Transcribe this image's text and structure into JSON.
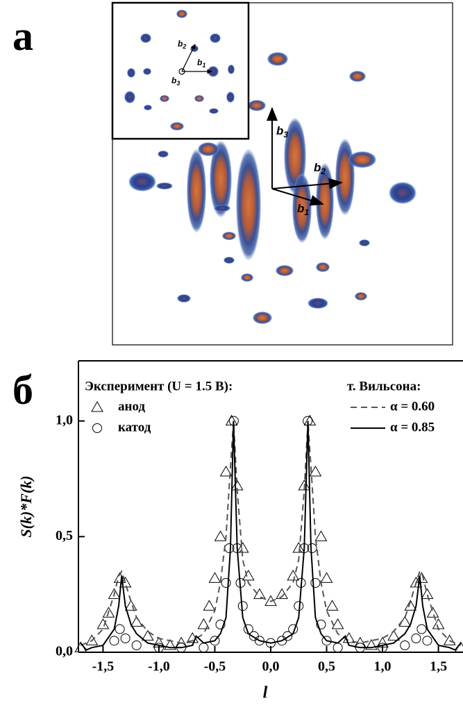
{
  "panel_a": {
    "label": "а",
    "vectors": [
      {
        "base": "b",
        "sub": "1"
      },
      {
        "base": "b",
        "sub": "2"
      },
      {
        "base": "b",
        "sub": "3"
      }
    ],
    "inset_vectors": [
      {
        "base": "b",
        "sub": "1"
      },
      {
        "base": "b",
        "sub": "2"
      },
      {
        "base": "b",
        "sub": "3"
      }
    ]
  },
  "chart_data": {
    "type": "line",
    "panel_label": "б",
    "x_label": "l",
    "y_label": "S(k)*F(k)",
    "legend_title_experiment": "Эксперимент (U = 1.5 В):",
    "legend_title_theory": "т. Вильсона:",
    "xlim": [
      -1.72,
      1.72
    ],
    "ylim": [
      0,
      1.26
    ],
    "xticks": [
      {
        "value": -1.5,
        "label": "-1,5"
      },
      {
        "value": -1.0,
        "label": "-1,0"
      },
      {
        "value": -0.5,
        "label": "-0,5"
      },
      {
        "value": 0,
        "label": "0,0"
      },
      {
        "value": 0.5,
        "label": "0,5"
      },
      {
        "value": 1.0,
        "label": "1,0"
      },
      {
        "value": 1.5,
        "label": "1,5"
      }
    ],
    "yticks": [
      {
        "value": 0,
        "label": "0,0"
      },
      {
        "value": 0.5,
        "label": "0,5"
      },
      {
        "value": 1.0,
        "label": "1,0"
      }
    ],
    "series": [
      {
        "name": "анод",
        "color": "#000000",
        "marker": "triangle",
        "x": [
          -1.7,
          -1.6,
          -1.5,
          -1.45,
          -1.4,
          -1.35,
          -1.3,
          -1.25,
          -1.2,
          -1.1,
          -1.0,
          -0.9,
          -0.8,
          -0.7,
          -0.6,
          -0.55,
          -0.5,
          -0.45,
          -0.4,
          -0.35,
          -0.3,
          -0.25,
          -0.2,
          -0.1,
          0,
          0.1,
          0.2,
          0.25,
          0.3,
          0.35,
          0.4,
          0.45,
          0.5,
          0.55,
          0.6,
          0.7,
          0.8,
          0.9,
          1.0,
          1.1,
          1.2,
          1.25,
          1.3,
          1.35,
          1.4,
          1.45,
          1.5,
          1.6,
          1.7
        ],
        "values": [
          0.02,
          0.05,
          0.12,
          0.17,
          0.25,
          0.32,
          0.3,
          0.2,
          0.13,
          0.07,
          0.04,
          0.03,
          0.04,
          0.06,
          0.12,
          0.2,
          0.32,
          0.5,
          0.78,
          1.0,
          0.72,
          0.45,
          0.33,
          0.25,
          0.22,
          0.25,
          0.33,
          0.45,
          0.72,
          1.0,
          0.78,
          0.5,
          0.32,
          0.2,
          0.12,
          0.06,
          0.04,
          0.03,
          0.04,
          0.07,
          0.13,
          0.2,
          0.3,
          0.32,
          0.25,
          0.17,
          0.12,
          0.05,
          0.02
        ]
      },
      {
        "name": "катод",
        "color": "#000000",
        "marker": "circle",
        "x": [
          -1.4,
          -1.35,
          -1.3,
          -1.2,
          -1.0,
          -0.8,
          -0.6,
          -0.5,
          -0.45,
          -0.4,
          -0.37,
          -0.33,
          -0.3,
          -0.27,
          -0.25,
          -0.2,
          -0.15,
          -0.1,
          0,
          0.1,
          0.15,
          0.2,
          0.25,
          0.27,
          0.3,
          0.33,
          0.37,
          0.4,
          0.45,
          0.5,
          0.6,
          0.8,
          1.0,
          1.2,
          1.3,
          1.35,
          1.4
        ],
        "values": [
          0.05,
          0.1,
          0.06,
          0.03,
          0.02,
          0.02,
          0.02,
          0.05,
          0.12,
          0.3,
          0.45,
          1.0,
          0.45,
          0.3,
          0.2,
          0.1,
          0.07,
          0.05,
          0.04,
          0.05,
          0.07,
          0.1,
          0.2,
          0.3,
          0.45,
          1.0,
          0.45,
          0.3,
          0.12,
          0.05,
          0.02,
          0.02,
          0.02,
          0.03,
          0.06,
          0.1,
          0.05
        ]
      },
      {
        "name": "α = 0.60",
        "color": "#555555",
        "line_style": "dashed",
        "x": [
          -1.7,
          -1.65,
          -1.6,
          -1.5,
          -1.4,
          -1.36,
          -1.333,
          -1.3,
          -1.25,
          -1.2,
          -1.1,
          -1.0,
          -0.9,
          -0.8,
          -0.7,
          -0.667,
          -0.6,
          -0.5,
          -0.45,
          -0.4,
          -0.36,
          -0.333,
          -0.3,
          -0.25,
          -0.2,
          -0.1,
          0,
          0.1,
          0.2,
          0.25,
          0.3,
          0.333,
          0.36,
          0.4,
          0.45,
          0.5,
          0.6,
          0.667,
          0.7,
          0.8,
          0.9,
          1.0,
          1.1,
          1.2,
          1.25,
          1.3,
          1.333,
          1.36,
          1.4,
          1.5,
          1.6,
          1.65,
          1.7
        ],
        "values": [
          0.03,
          0.04,
          0.05,
          0.1,
          0.25,
          0.33,
          0.35,
          0.3,
          0.22,
          0.15,
          0.09,
          0.06,
          0.05,
          0.04,
          0.05,
          0.06,
          0.08,
          0.18,
          0.3,
          0.5,
          0.8,
          1.0,
          0.7,
          0.4,
          0.3,
          0.24,
          0.22,
          0.24,
          0.3,
          0.4,
          0.7,
          1.0,
          0.8,
          0.5,
          0.3,
          0.18,
          0.08,
          0.06,
          0.05,
          0.04,
          0.05,
          0.06,
          0.09,
          0.15,
          0.22,
          0.3,
          0.35,
          0.33,
          0.25,
          0.1,
          0.05,
          0.04,
          0.03
        ]
      },
      {
        "name": "α = 0.85",
        "color": "#000000",
        "line_style": "solid",
        "x": [
          -1.7,
          -1.65,
          -1.6,
          -1.5,
          -1.4,
          -1.36,
          -1.333,
          -1.3,
          -1.25,
          -1.2,
          -1.1,
          -1.0,
          -0.9,
          -0.8,
          -0.7,
          -0.667,
          -0.6,
          -0.5,
          -0.45,
          -0.4,
          -0.36,
          -0.333,
          -0.3,
          -0.25,
          -0.2,
          -0.1,
          0,
          0.1,
          0.2,
          0.25,
          0.3,
          0.333,
          0.36,
          0.4,
          0.45,
          0.5,
          0.6,
          0.667,
          0.7,
          0.8,
          0.9,
          1.0,
          1.1,
          1.2,
          1.25,
          1.3,
          1.333,
          1.36,
          1.4,
          1.5,
          1.6,
          1.65,
          1.7
        ],
        "values": [
          0.04,
          0.01,
          0.02,
          0.03,
          0.1,
          0.2,
          0.33,
          0.2,
          0.12,
          0.08,
          0.04,
          0.03,
          0.02,
          0.02,
          0.03,
          0.07,
          0.04,
          0.05,
          0.08,
          0.15,
          0.45,
          1.0,
          0.45,
          0.15,
          0.08,
          0.05,
          0.04,
          0.05,
          0.08,
          0.15,
          0.45,
          1.0,
          0.45,
          0.15,
          0.08,
          0.05,
          0.04,
          0.07,
          0.03,
          0.02,
          0.02,
          0.03,
          0.04,
          0.08,
          0.12,
          0.2,
          0.33,
          0.2,
          0.1,
          0.03,
          0.02,
          0.01,
          0.04
        ]
      }
    ]
  }
}
